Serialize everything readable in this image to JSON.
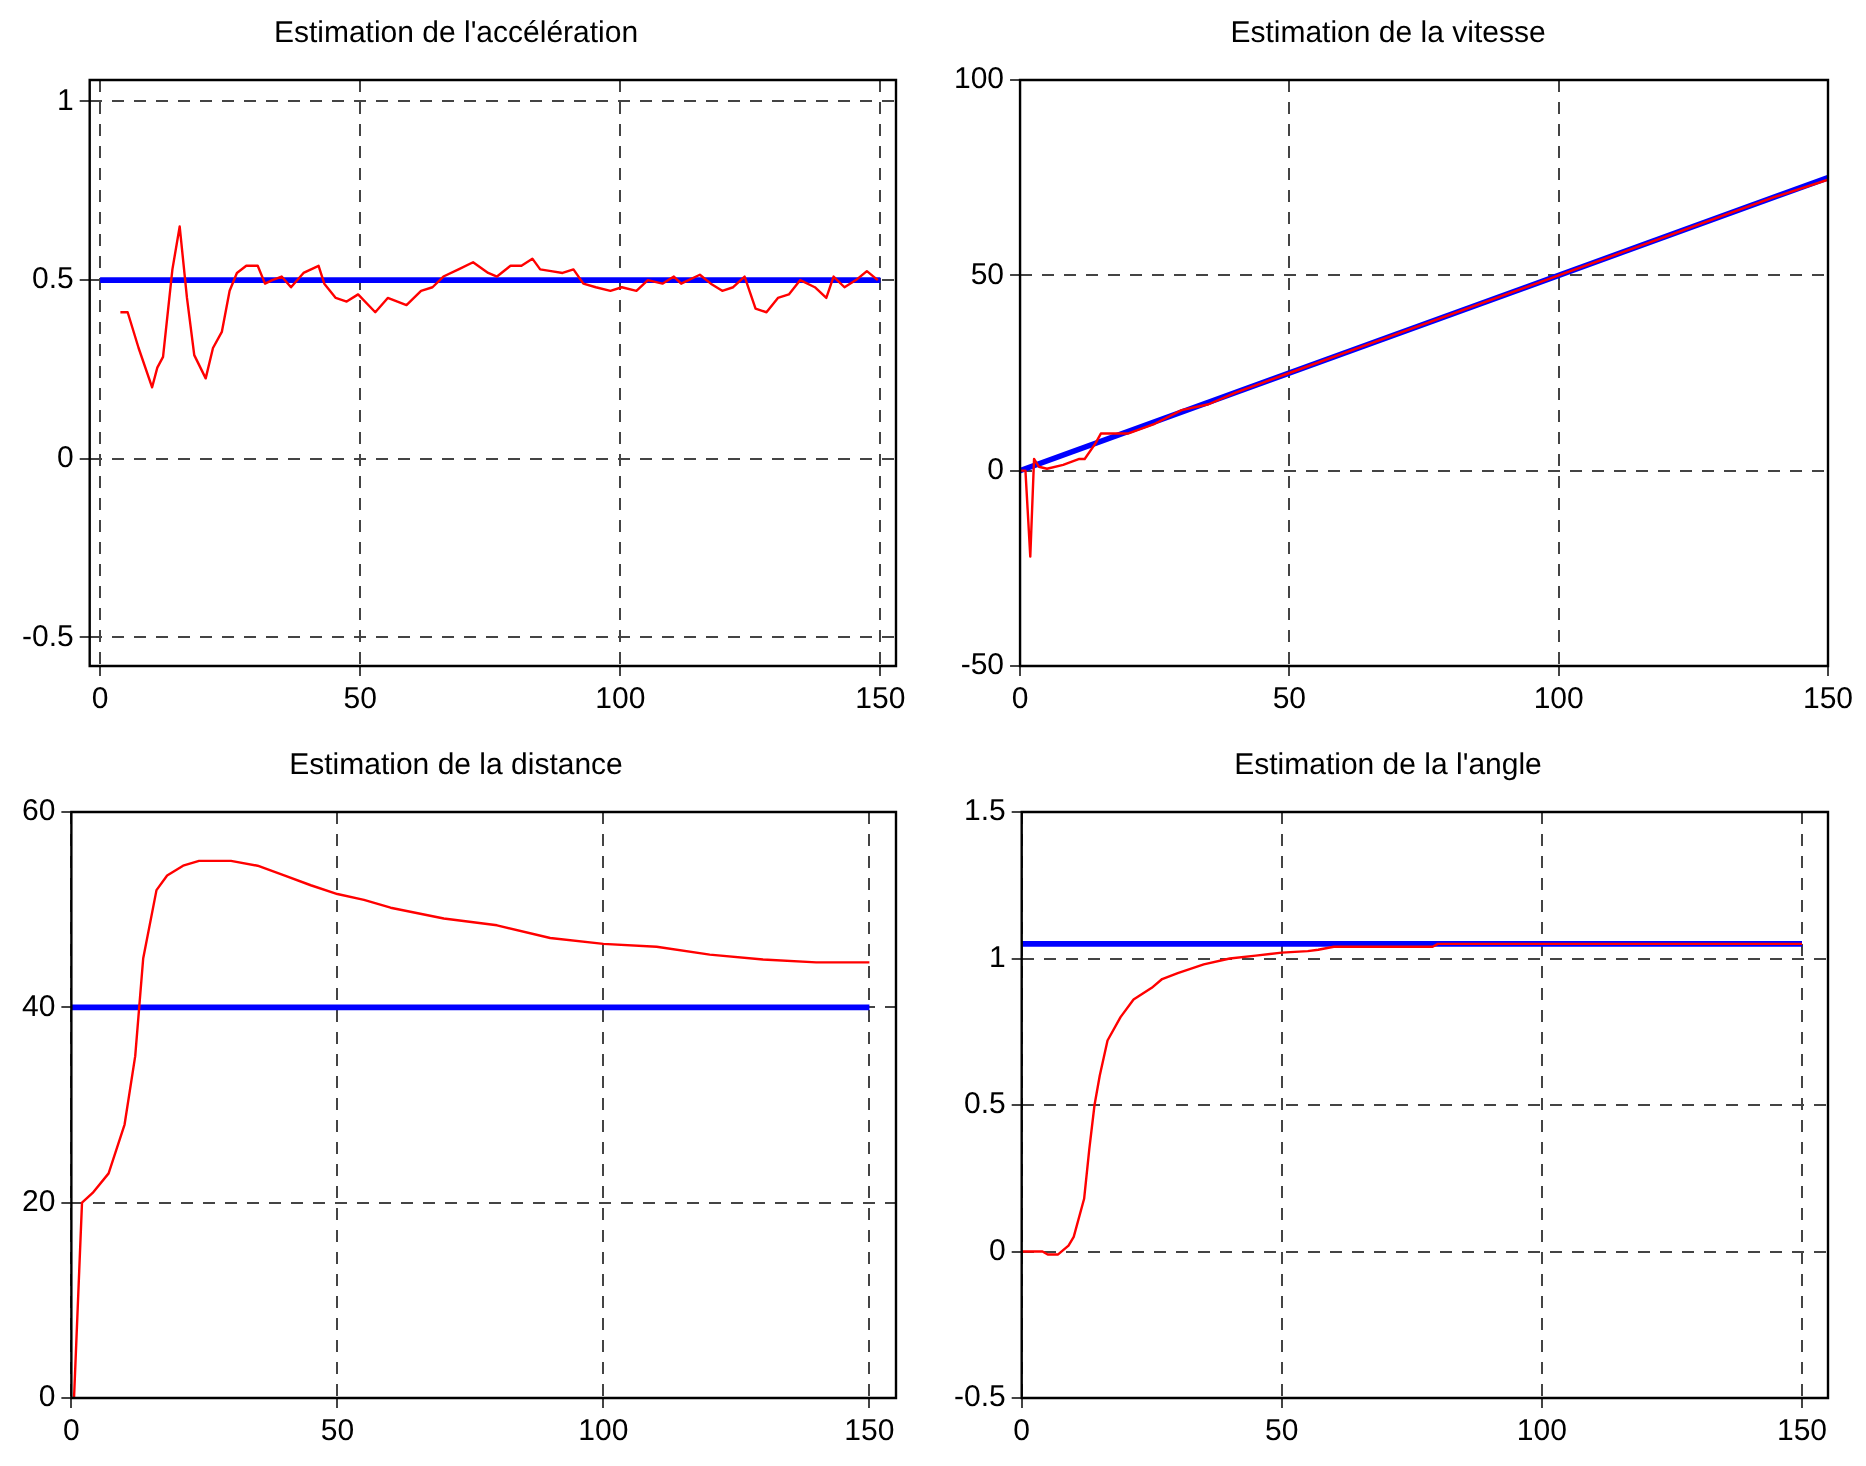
{
  "chart_data": [
    {
      "type": "line",
      "title": "Estimation de l'accélération",
      "xlim": [
        -2,
        153
      ],
      "xticks": [
        0,
        50,
        100,
        150
      ],
      "ylim": [
        -0.58,
        1.06
      ],
      "yticks": [
        -0.5,
        0,
        0.5,
        1
      ],
      "grid": true,
      "series": [
        {
          "color": "#ff0000",
          "x": [
            3.9,
            5.3,
            7.4,
            10,
            11,
            12.1,
            13.9,
            15.3,
            16.7,
            18.1,
            20.3,
            21.7,
            23.4,
            24.9,
            26.3,
            28.1,
            30.3,
            31.7,
            33.1,
            34.9,
            36.7,
            39.1,
            42,
            43.1,
            45.3,
            47.4,
            49.6,
            52.9,
            55.3,
            58.9,
            61.7,
            63.9,
            66,
            68.9,
            71.7,
            74.6,
            76.3,
            78.9,
            81,
            83.1,
            84.6,
            86.7,
            88.9,
            91,
            92.9,
            95.3,
            98.1,
            100.3,
            103.1,
            105.3,
            108.1,
            110.3,
            111.7,
            115.3,
            117.4,
            119.6,
            121.7,
            123.9,
            126,
            128.1,
            130.3,
            132.4,
            134.6,
            137.4,
            139.6,
            141,
            143.1,
            145.3,
            147.4,
            149.5
          ],
          "values": [
            0.41,
            0.41,
            0.31,
            0.2,
            0.255,
            0.285,
            0.53,
            0.65,
            0.45,
            0.29,
            0.225,
            0.31,
            0.355,
            0.47,
            0.52,
            0.54,
            0.54,
            0.49,
            0.5,
            0.51,
            0.48,
            0.52,
            0.54,
            0.49,
            0.45,
            0.44,
            0.46,
            0.41,
            0.45,
            0.43,
            0.47,
            0.48,
            0.51,
            0.53,
            0.55,
            0.52,
            0.51,
            0.54,
            0.54,
            0.56,
            0.53,
            0.525,
            0.52,
            0.53,
            0.49,
            0.48,
            0.47,
            0.48,
            0.47,
            0.5,
            0.49,
            0.51,
            0.49,
            0.515,
            0.49,
            0.47,
            0.48,
            0.51,
            0.42,
            0.41,
            0.45,
            0.46,
            0.5,
            0.48,
            0.45,
            0.51,
            0.48,
            0.5,
            0.525,
            0.5
          ]
        },
        {
          "color": "#0000ff",
          "x": [
            0,
            150
          ],
          "values": [
            0.5,
            0.5
          ]
        }
      ]
    },
    {
      "type": "line",
      "title": "Estimation de la vitesse",
      "xlim": [
        0,
        150
      ],
      "xticks": [
        0,
        50,
        100,
        150
      ],
      "ylim": [
        -50,
        100
      ],
      "yticks": [
        -50,
        0,
        50,
        100
      ],
      "grid": true,
      "series": [
        {
          "color": "#ff0000",
          "x": [
            0,
            1,
            1.9,
            2.6,
            3.5,
            5,
            8,
            11,
            12,
            14,
            15,
            20,
            25,
            30,
            35,
            40,
            45,
            50,
            60,
            70,
            80,
            90,
            100,
            110,
            120,
            130,
            140,
            150
          ],
          "values": [
            0,
            0,
            -22,
            3,
            1,
            0.5,
            1.5,
            3,
            3,
            7,
            9.5,
            9.5,
            12,
            15.5,
            17,
            20,
            22.5,
            25,
            30,
            35,
            40,
            45,
            50,
            55,
            60,
            65,
            70,
            74.5
          ]
        },
        {
          "color": "#0000ff",
          "x": [
            0,
            150
          ],
          "values": [
            0,
            75
          ]
        }
      ]
    },
    {
      "type": "line",
      "title": "Estimation de la distance",
      "xlim": [
        0,
        155
      ],
      "xticks": [
        0,
        50,
        100,
        150
      ],
      "ylim": [
        0,
        60
      ],
      "yticks": [
        0,
        20,
        40,
        60
      ],
      "grid": true,
      "series": [
        {
          "color": "#ff0000",
          "x": [
            0.5,
            2,
            4,
            7,
            10,
            12,
            13.5,
            16,
            18,
            21,
            24,
            30,
            35,
            40,
            45,
            50,
            55,
            60,
            70,
            80,
            90,
            100,
            110,
            120,
            130,
            140,
            150
          ],
          "values": [
            0,
            20,
            21,
            23,
            28,
            35,
            45,
            52,
            53.5,
            54.5,
            55,
            55,
            54.5,
            53.5,
            52.5,
            51.6,
            51,
            50.2,
            49.1,
            48.4,
            47.1,
            46.5,
            46.2,
            45.4,
            44.9,
            44.6,
            44.6
          ]
        },
        {
          "color": "#0000ff",
          "x": [
            0,
            150
          ],
          "values": [
            40,
            40
          ]
        }
      ]
    },
    {
      "type": "line",
      "title": "Estimation de la l'angle",
      "xlim": [
        0,
        155
      ],
      "xticks": [
        0,
        50,
        100,
        150
      ],
      "ylim": [
        -0.5,
        1.5
      ],
      "yticks": [
        -0.5,
        0,
        0.5,
        1,
        1.5
      ],
      "grid": true,
      "series": [
        {
          "color": "#ff0000",
          "x": [
            0,
            4,
            5,
            7,
            9,
            10,
            12,
            13,
            14,
            15,
            16.5,
            19,
            21.5,
            25,
            27,
            30,
            35,
            40,
            45,
            50,
            55,
            57,
            60,
            79,
            80,
            150
          ],
          "values": [
            0,
            0,
            -0.01,
            -0.01,
            0.02,
            0.05,
            0.18,
            0.35,
            0.5,
            0.6,
            0.72,
            0.8,
            0.86,
            0.9,
            0.93,
            0.95,
            0.98,
            1,
            1.01,
            1.02,
            1.025,
            1.03,
            1.04,
            1.04,
            1.05,
            1.05
          ]
        },
        {
          "color": "#0000ff",
          "x": [
            0,
            150
          ],
          "values": [
            1.05,
            1.05
          ]
        }
      ]
    }
  ]
}
